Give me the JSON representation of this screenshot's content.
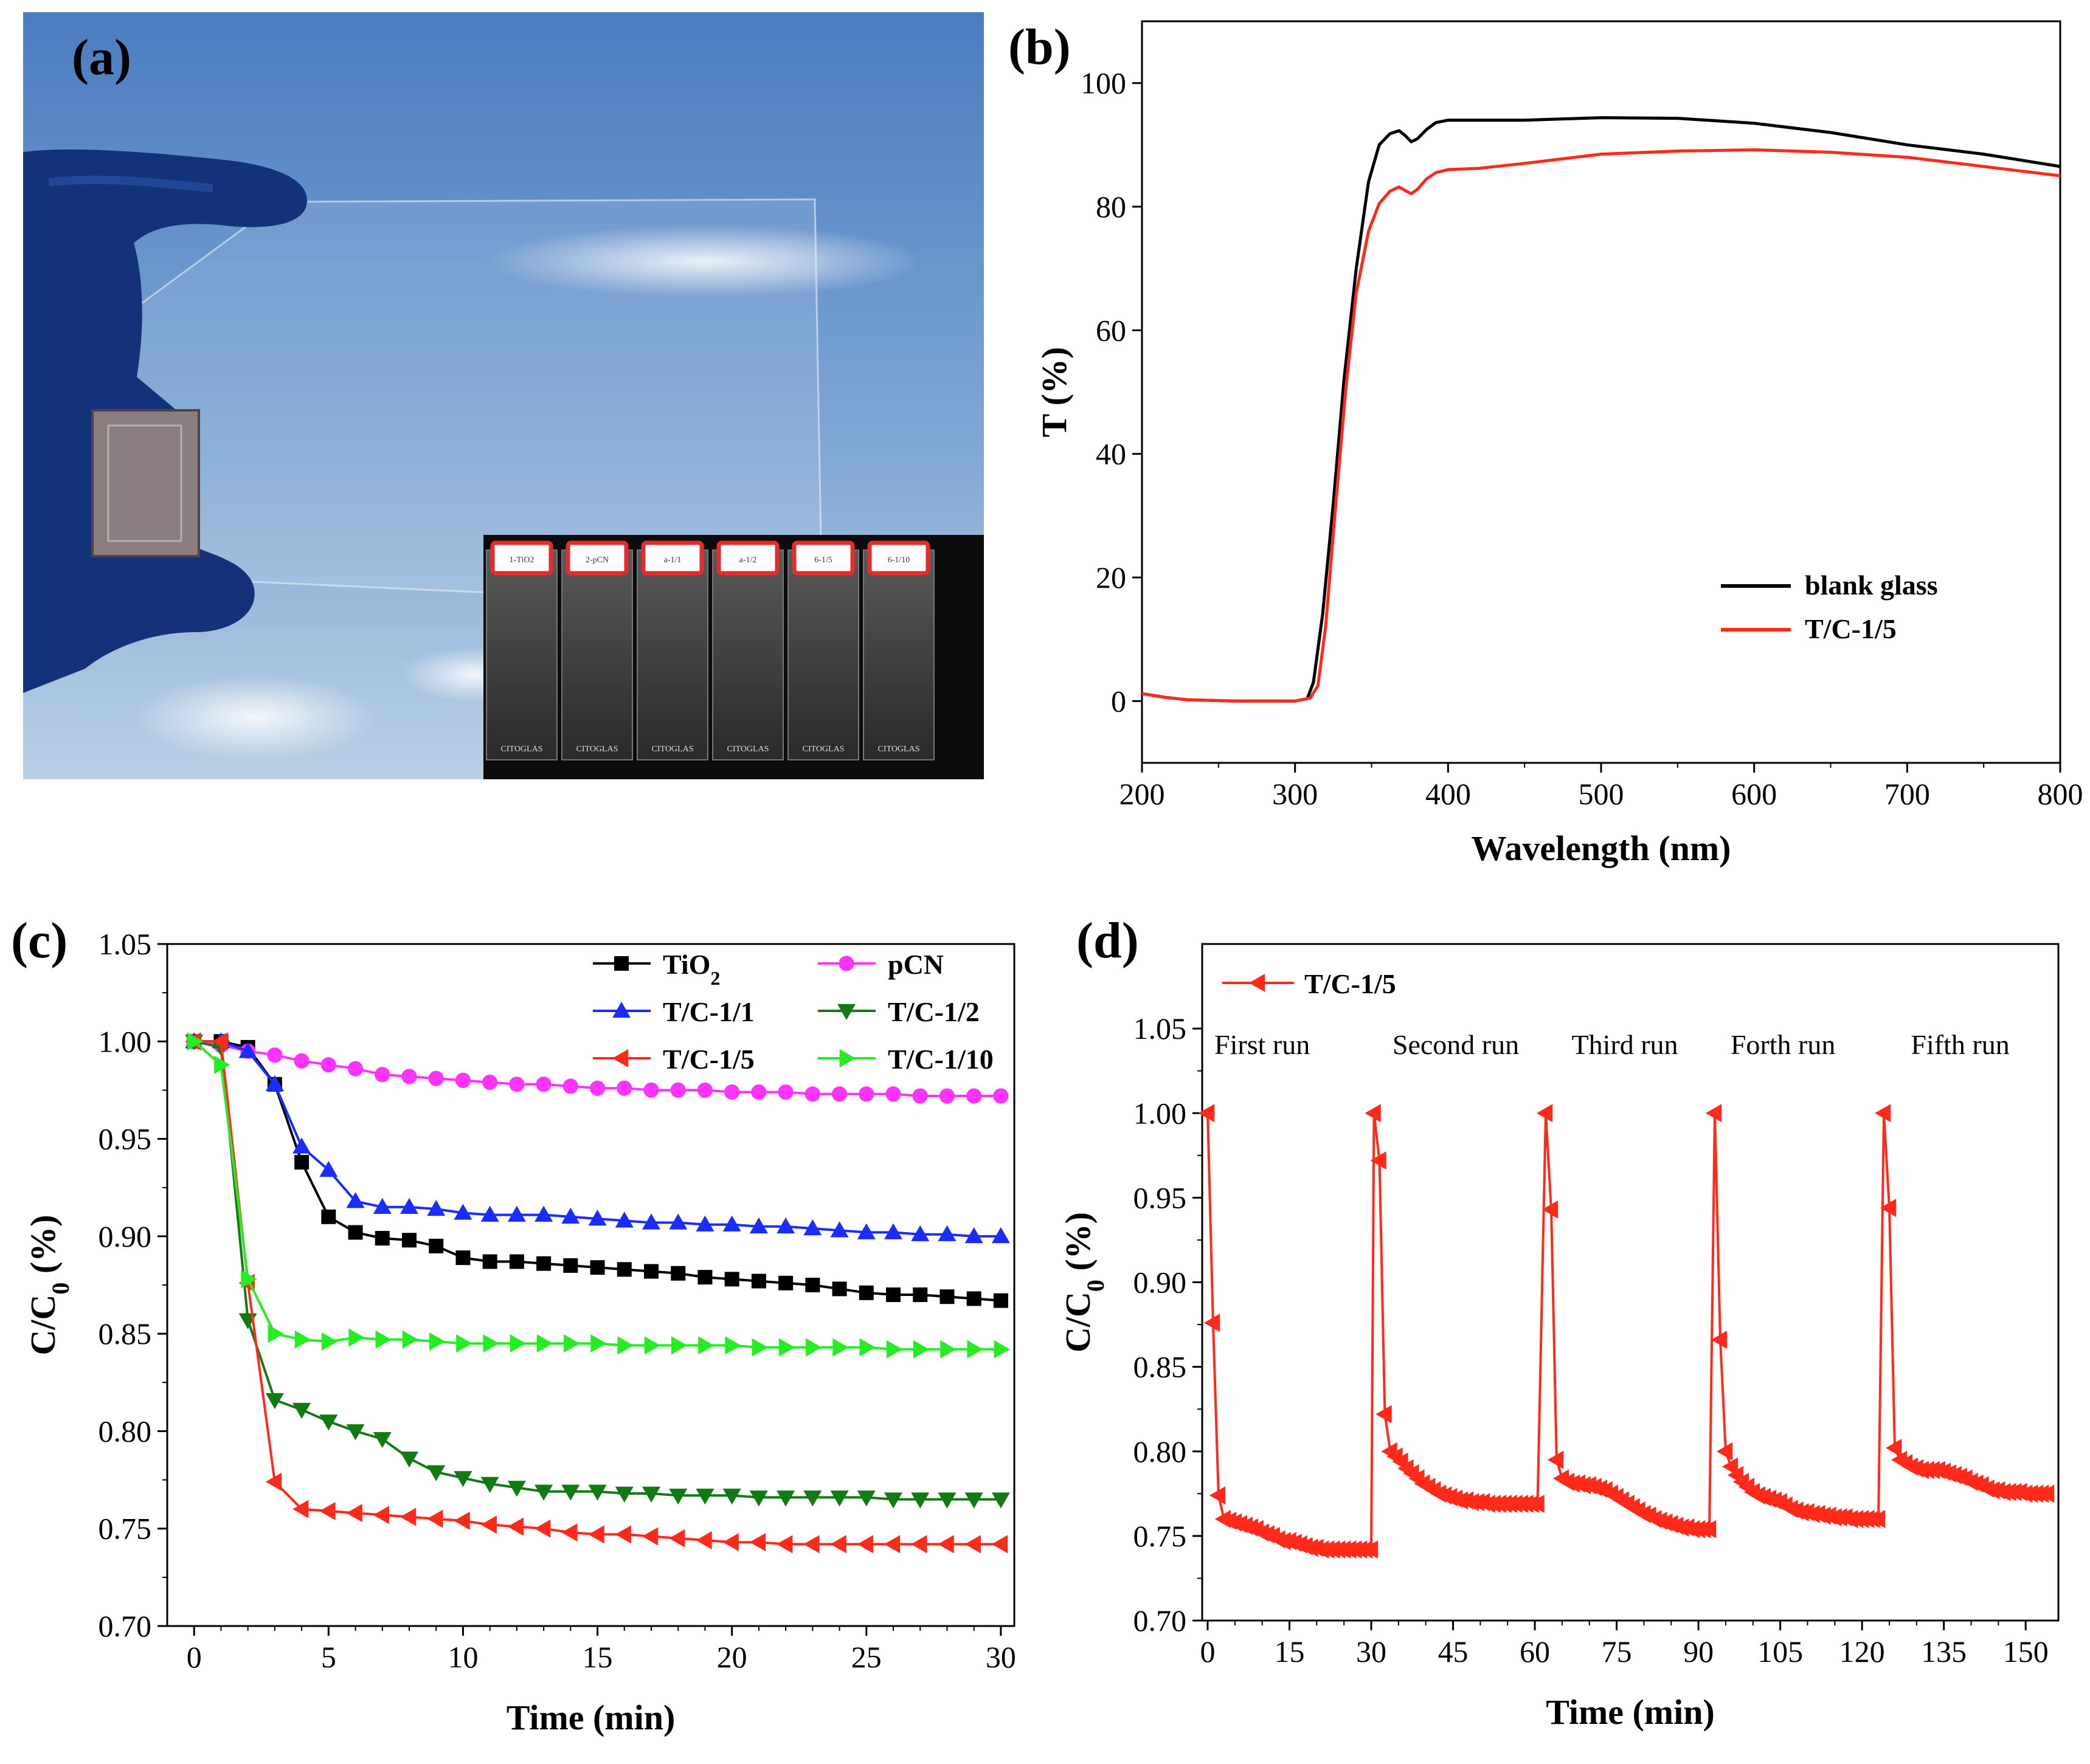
{
  "panels": {
    "a": {
      "label": "(a)",
      "inset_slide_labels": [
        "1-TiO2",
        "2-pCN",
        "a-1/1",
        "a-1/2",
        "6-1/5",
        "6-1/10"
      ],
      "inset_brand": "CITOGLAS"
    },
    "b": {
      "label": "(b)"
    },
    "c": {
      "label": "(c)"
    },
    "d": {
      "label": "(d)"
    }
  },
  "colors": {
    "black": "#000000",
    "red": "#ff2a1a",
    "blue": "#1a2cff",
    "magenta": "#ff33ff",
    "green_dark": "#127a12",
    "green_light": "#22ee22",
    "sky_top": "#4d7ec0",
    "sky_bottom": "#b7cfe4",
    "glove": "#13327a"
  },
  "chart_data": [
    {
      "id": "b",
      "type": "line",
      "xlabel": "Wavelength (nm)",
      "ylabel": "T (%)",
      "xlim": [
        200,
        800
      ],
      "ylim": [
        -10,
        110
      ],
      "xticks": [
        200,
        300,
        400,
        500,
        600,
        700,
        800
      ],
      "yticks": [
        0,
        20,
        40,
        60,
        80,
        100
      ],
      "grid": false,
      "legend_position": "bottom-right",
      "series": [
        {
          "name": "blank glass",
          "color": "#000000",
          "x": [
            200,
            215,
            230,
            260,
            300,
            308,
            312,
            318,
            325,
            332,
            340,
            348,
            355,
            362,
            368,
            372,
            376,
            380,
            386,
            392,
            400,
            420,
            450,
            500,
            550,
            600,
            650,
            700,
            750,
            800
          ],
          "y": [
            1.2,
            0.6,
            0.2,
            0.0,
            0.0,
            0.4,
            3,
            14,
            32,
            52,
            70,
            84,
            90,
            91.8,
            92.3,
            91.5,
            90.5,
            91,
            92.5,
            93.6,
            94,
            94,
            94,
            94.4,
            94.3,
            93.5,
            92,
            90,
            88.5,
            86.5
          ]
        },
        {
          "name": "T/C-1/5",
          "color": "#ff2a1a",
          "x": [
            200,
            215,
            230,
            260,
            300,
            310,
            315,
            320,
            326,
            333,
            340,
            348,
            355,
            362,
            368,
            372,
            376,
            380,
            386,
            392,
            400,
            420,
            450,
            500,
            550,
            600,
            650,
            700,
            750,
            800
          ],
          "y": [
            1.2,
            0.6,
            0.2,
            0.0,
            0.0,
            0.5,
            2.5,
            12,
            30,
            50,
            66,
            76,
            80.5,
            82.5,
            83.2,
            82.6,
            82.1,
            82.8,
            84.5,
            85.5,
            86,
            86.2,
            87,
            88.5,
            89,
            89.2,
            88.8,
            88,
            86.5,
            85
          ]
        }
      ]
    },
    {
      "id": "c",
      "type": "line",
      "xlabel": "Time (min)",
      "ylabel_main": "C/C",
      "ylabel_sub": "0",
      "ylabel_tail": " (%)",
      "xlim": [
        -1,
        30.5
      ],
      "ylim": [
        0.7,
        1.05
      ],
      "xticks": [
        0,
        5,
        10,
        15,
        20,
        25,
        30
      ],
      "yticks": [
        0.7,
        0.75,
        0.8,
        0.85,
        0.9,
        0.95,
        1.0,
        1.05
      ],
      "ytick_labels": [
        "0.70",
        "0.75",
        "0.80",
        "0.85",
        "0.90",
        "0.95",
        "1.00",
        "1.05"
      ],
      "grid": false,
      "legend_position": "top-right",
      "x": [
        0,
        1,
        2,
        3,
        4,
        5,
        6,
        7,
        8,
        9,
        10,
        11,
        12,
        13,
        14,
        15,
        16,
        17,
        18,
        19,
        20,
        21,
        22,
        23,
        24,
        25,
        26,
        27,
        28,
        29,
        30
      ],
      "series": [
        {
          "name": "TiO",
          "name_sub": "2",
          "marker": "square",
          "color": "#000000",
          "values": [
            1.0,
            1.0,
            0.997,
            0.978,
            0.938,
            0.91,
            0.902,
            0.899,
            0.898,
            0.895,
            0.889,
            0.887,
            0.887,
            0.886,
            0.885,
            0.884,
            0.883,
            0.882,
            0.881,
            0.879,
            0.878,
            0.877,
            0.876,
            0.875,
            0.873,
            0.871,
            0.87,
            0.87,
            0.869,
            0.868,
            0.867
          ]
        },
        {
          "name": "pCN",
          "marker": "circle",
          "color": "#ff33ff",
          "values": [
            1.0,
            0.998,
            0.995,
            0.993,
            0.99,
            0.988,
            0.986,
            0.983,
            0.982,
            0.981,
            0.98,
            0.979,
            0.978,
            0.978,
            0.977,
            0.976,
            0.976,
            0.975,
            0.975,
            0.975,
            0.974,
            0.974,
            0.974,
            0.973,
            0.973,
            0.973,
            0.973,
            0.972,
            0.972,
            0.972,
            0.972
          ]
        },
        {
          "name": "T/C-1/1",
          "marker": "triangle-up",
          "color": "#1a2cff",
          "values": [
            1.0,
            1.0,
            0.995,
            0.978,
            0.946,
            0.934,
            0.918,
            0.915,
            0.915,
            0.914,
            0.912,
            0.911,
            0.911,
            0.911,
            0.91,
            0.909,
            0.908,
            0.907,
            0.907,
            0.906,
            0.906,
            0.905,
            0.905,
            0.904,
            0.903,
            0.902,
            0.902,
            0.901,
            0.901,
            0.9,
            0.9
          ]
        },
        {
          "name": "T/C-1/2",
          "marker": "triangle-down",
          "color": "#127a12",
          "values": [
            1.0,
            0.997,
            0.857,
            0.816,
            0.811,
            0.805,
            0.8,
            0.796,
            0.786,
            0.779,
            0.776,
            0.773,
            0.771,
            0.769,
            0.769,
            0.769,
            0.768,
            0.768,
            0.767,
            0.767,
            0.767,
            0.766,
            0.766,
            0.766,
            0.766,
            0.766,
            0.765,
            0.765,
            0.765,
            0.765,
            0.765
          ]
        },
        {
          "name": "T/C-1/5",
          "marker": "triangle-left",
          "color": "#ff2a1a",
          "values": [
            1.0,
            1.0,
            0.876,
            0.774,
            0.76,
            0.759,
            0.758,
            0.757,
            0.756,
            0.755,
            0.754,
            0.752,
            0.751,
            0.75,
            0.748,
            0.747,
            0.747,
            0.746,
            0.745,
            0.744,
            0.743,
            0.743,
            0.742,
            0.742,
            0.742,
            0.742,
            0.742,
            0.742,
            0.742,
            0.742,
            0.742
          ]
        },
        {
          "name": "T/C-1/10",
          "marker": "triangle-right",
          "color": "#22ee22",
          "values": [
            1.0,
            0.988,
            0.878,
            0.85,
            0.847,
            0.846,
            0.848,
            0.847,
            0.847,
            0.846,
            0.845,
            0.845,
            0.845,
            0.845,
            0.845,
            0.845,
            0.844,
            0.844,
            0.844,
            0.844,
            0.844,
            0.843,
            0.843,
            0.843,
            0.843,
            0.843,
            0.842,
            0.842,
            0.842,
            0.842,
            0.842
          ]
        }
      ]
    },
    {
      "id": "d",
      "type": "line",
      "xlabel": "Time (min)",
      "ylabel_main": "C/C",
      "ylabel_sub": "0",
      "ylabel_tail": " (%)",
      "xlim": [
        -1,
        156
      ],
      "ylim": [
        0.7,
        1.1
      ],
      "xticks": [
        0,
        15,
        30,
        45,
        60,
        75,
        90,
        105,
        120,
        135,
        150
      ],
      "yticks": [
        0.7,
        0.75,
        0.8,
        0.85,
        0.9,
        0.95,
        1.0,
        1.05
      ],
      "ytick_labels": [
        "0.70",
        "0.75",
        "0.80",
        "0.85",
        "0.90",
        "0.95",
        "1.00",
        "1.05"
      ],
      "grid": false,
      "legend_position": "top-left",
      "run_labels": [
        "First run",
        "Second run",
        "Third run",
        "Forth run",
        "Fifth run"
      ],
      "run_label_x": [
        10,
        45.5,
        76.5,
        105.5,
        138
      ],
      "run_label_y": 1.035,
      "series": [
        {
          "name": "T/C-1/5",
          "marker": "triangle-left",
          "color": "#ff2a1a",
          "runs": [
            {
              "start": 0,
              "values": [
                1.0,
                0.876,
                0.774,
                0.76,
                0.759,
                0.758,
                0.757,
                0.756,
                0.755,
                0.754,
                0.752,
                0.751,
                0.75,
                0.748,
                0.747,
                0.747,
                0.746,
                0.745,
                0.744,
                0.743,
                0.743,
                0.742,
                0.742,
                0.742,
                0.742,
                0.742,
                0.742,
                0.742,
                0.742,
                0.742,
                0.742
              ]
            },
            {
              "start": 30.5,
              "values": [
                1.0,
                0.972,
                0.822,
                0.8,
                0.797,
                0.794,
                0.79,
                0.787,
                0.784,
                0.781,
                0.779,
                0.777,
                0.775,
                0.774,
                0.773,
                0.772,
                0.771,
                0.771,
                0.77,
                0.77,
                0.77,
                0.769,
                0.769,
                0.769,
                0.769,
                0.769,
                0.769,
                0.769,
                0.769,
                0.769,
                0.769
              ]
            },
            {
              "start": 62,
              "values": [
                1.0,
                0.943,
                0.795,
                0.784,
                0.782,
                0.781,
                0.781,
                0.78,
                0.78,
                0.779,
                0.778,
                0.777,
                0.775,
                0.773,
                0.771,
                0.769,
                0.767,
                0.765,
                0.763,
                0.762,
                0.76,
                0.759,
                0.758,
                0.757,
                0.756,
                0.755,
                0.755,
                0.754,
                0.754,
                0.754,
                0.754
              ]
            },
            {
              "start": 93,
              "values": [
                1.0,
                0.866,
                0.8,
                0.791,
                0.786,
                0.782,
                0.779,
                0.776,
                0.774,
                0.773,
                0.772,
                0.771,
                0.77,
                0.768,
                0.766,
                0.765,
                0.764,
                0.764,
                0.763,
                0.763,
                0.762,
                0.762,
                0.761,
                0.761,
                0.761,
                0.76,
                0.76,
                0.76,
                0.76,
                0.76,
                0.76
              ]
            },
            {
              "start": 124,
              "values": [
                1.0,
                0.944,
                0.802,
                0.795,
                0.793,
                0.791,
                0.79,
                0.789,
                0.789,
                0.789,
                0.789,
                0.788,
                0.787,
                0.786,
                0.785,
                0.784,
                0.782,
                0.781,
                0.78,
                0.778,
                0.777,
                0.777,
                0.776,
                0.776,
                0.776,
                0.776,
                0.775,
                0.775,
                0.775,
                0.775,
                0.775
              ]
            }
          ]
        }
      ]
    }
  ]
}
